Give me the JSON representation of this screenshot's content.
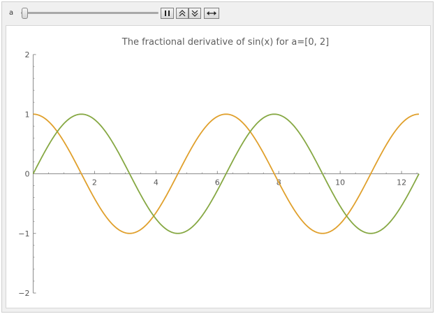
{
  "manipulate": {
    "parameter_label": "a",
    "slider": {
      "value": 0,
      "min": 0,
      "max": 2
    },
    "buttons": [
      "pause",
      "faster-slower",
      "direction"
    ]
  },
  "chart_data": {
    "type": "line",
    "title": "The fractional derivative of sin(x) for a=[0, 2]",
    "xlabel": "",
    "ylabel": "",
    "xlim": [
      0,
      12.566
    ],
    "ylim": [
      -2,
      2
    ],
    "x_ticks": [
      2,
      4,
      6,
      8,
      10,
      12
    ],
    "x_tick_labels": [
      "2",
      "4",
      "6",
      "8",
      "10",
      "12"
    ],
    "y_ticks": [
      -2,
      -1,
      0,
      1,
      2
    ],
    "y_tick_labels": [
      "−2",
      "−1",
      "0",
      "1",
      "2"
    ],
    "grid": false,
    "legend": "none",
    "series": [
      {
        "function": "cos(x)",
        "color": "#e0a02c"
      },
      {
        "function": "sin(x)",
        "color": "#86a843"
      }
    ]
  }
}
